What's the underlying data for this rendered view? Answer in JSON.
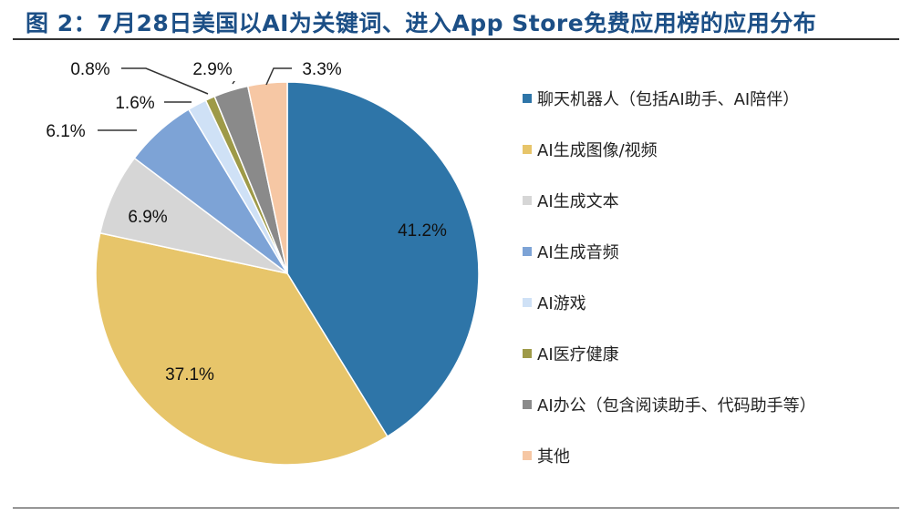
{
  "title": "图 2：7月28日美国以AI为关键词、进入App Store免费应用榜的应用分布",
  "chart_data": {
    "type": "pie",
    "title": "",
    "legend_position": "right",
    "slices": [
      {
        "name": "聊天机器人（包括AI助手、AI陪伴）",
        "value": 41.2,
        "label": "41.2%",
        "color": "#2e75a8"
      },
      {
        "name": "AI生成图像/视频",
        "value": 37.1,
        "label": "37.1%",
        "color": "#e7c56a"
      },
      {
        "name": "AI生成文本",
        "value": 6.9,
        "label": "6.9%",
        "color": "#d6d6d6"
      },
      {
        "name": "AI生成音频",
        "value": 6.1,
        "label": "6.1%",
        "color": "#7da3d6"
      },
      {
        "name": "AI游戏",
        "value": 1.6,
        "label": "1.6%",
        "color": "#cfe1f6"
      },
      {
        "name": "AI医疗健康",
        "value": 0.8,
        "label": "0.8%",
        "color": "#9e9a48"
      },
      {
        "name": "AI办公（包含阅读助手、代码助手等）",
        "value": 2.9,
        "label": "2.9%",
        "color": "#8a8a8a"
      },
      {
        "name": "其他",
        "value": 3.3,
        "label": "3.3%",
        "color": "#f6c7a4"
      }
    ]
  }
}
